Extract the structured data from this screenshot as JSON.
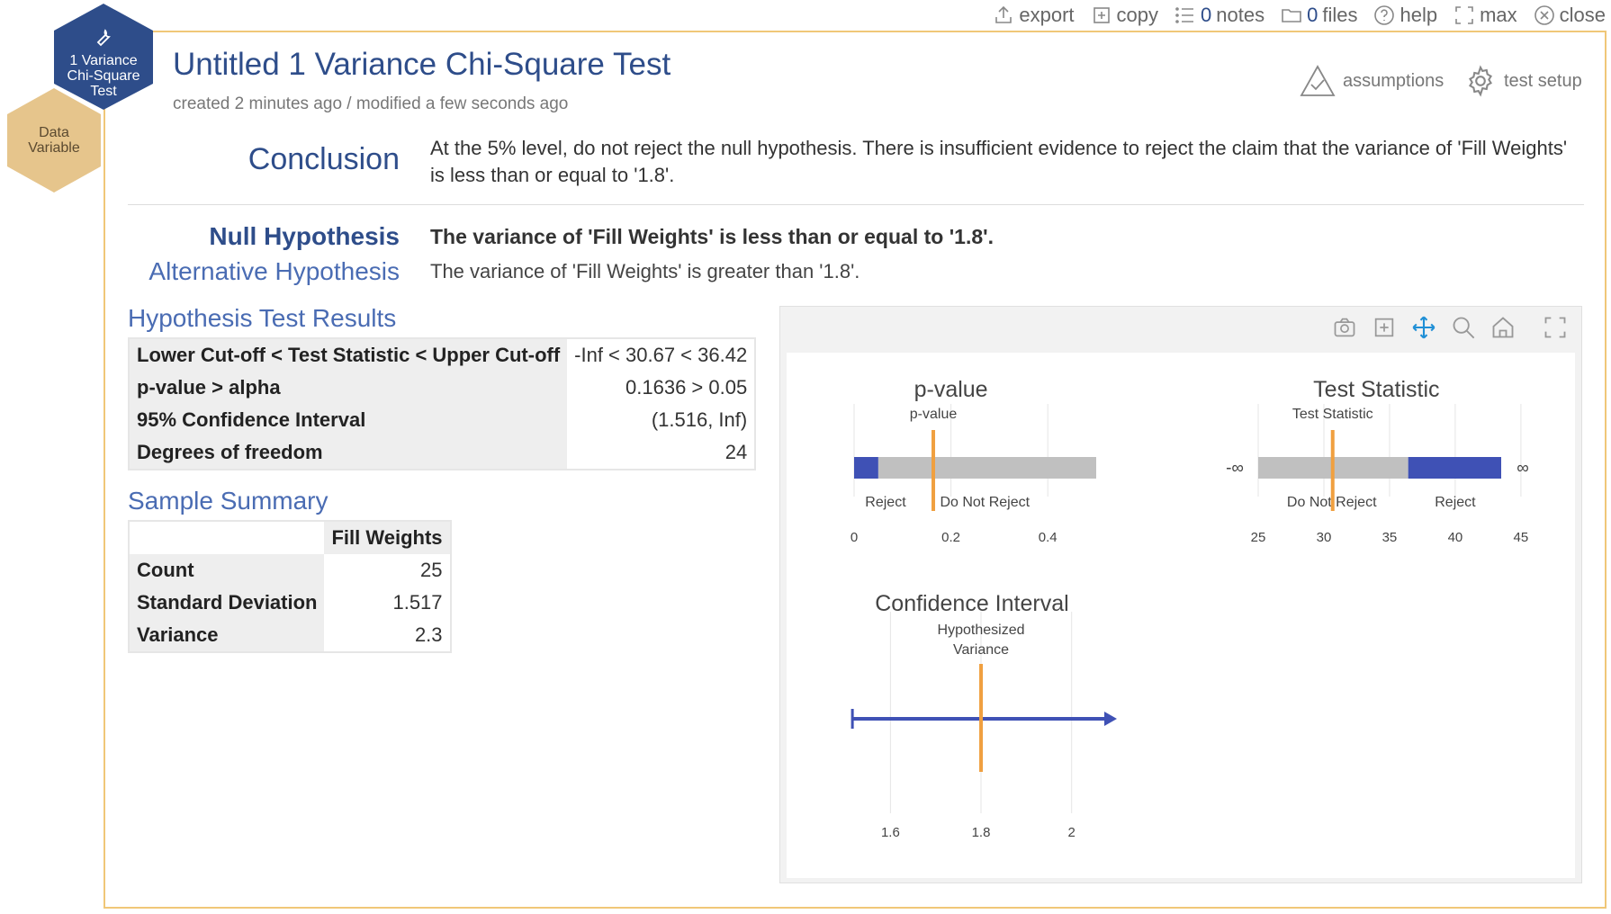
{
  "topbar": {
    "export": "export",
    "copy": "copy",
    "notes_count": "0",
    "notes": "notes",
    "files_count": "0",
    "files": "files",
    "help": "help",
    "max": "max",
    "close": "close"
  },
  "tool_badge": {
    "line1": "1 Variance",
    "line2": "Chi-Square",
    "line3": "Test",
    "color": "#2e4d8a",
    "icon": "wrench-icon"
  },
  "data_badge": {
    "line1": "Data",
    "line2": "Variable",
    "color": "#e6c58c"
  },
  "header": {
    "title": "Untitled 1 Variance Chi-Square Test",
    "subtitle": "created 2 minutes ago / modified a few seconds ago",
    "assumptions": "assumptions",
    "test_setup": "test setup"
  },
  "conclusion": {
    "label": "Conclusion",
    "text": "At the 5% level, do not reject the null hypothesis. There is insufficient evidence to reject the claim that the variance of 'Fill Weights' is less than or equal to '1.8'."
  },
  "hypotheses": {
    "null_label": "Null Hypothesis",
    "null_text": "The variance of 'Fill Weights' is less than or equal to '1.8'.",
    "alt_label": "Alternative Hypothesis",
    "alt_text": "The variance of 'Fill Weights' is greater than '1.8'."
  },
  "results": {
    "title": "Hypothesis Test Results",
    "rows": [
      {
        "label": "Lower Cut-off < Test Statistic < Upper Cut-off",
        "value": "-Inf < 30.67 < 36.42"
      },
      {
        "label": "p-value > alpha",
        "value": "0.1636 > 0.05"
      },
      {
        "label": "95% Confidence Interval",
        "value": "(1.516, Inf)"
      },
      {
        "label": "Degrees of freedom",
        "value": "24"
      }
    ]
  },
  "summary": {
    "title": "Sample Summary",
    "column": "Fill Weights",
    "rows": [
      {
        "label": "Count",
        "value": "25"
      },
      {
        "label": "Standard Deviation",
        "value": "1.517"
      },
      {
        "label": "Variance",
        "value": "2.3"
      }
    ]
  },
  "colors": {
    "accent": "#2e4d8a",
    "bar_reject": "#3f51b5",
    "bar_fail": "#c0c0c0",
    "marker": "#f0a040",
    "frame": "#f0c778"
  },
  "chart_data": [
    {
      "type": "bar",
      "title": "p-value",
      "xlim": [
        0,
        0.5
      ],
      "ticks": [
        "0",
        "0.2",
        "0.4"
      ],
      "tick_values": [
        0,
        0.2,
        0.4
      ],
      "regions": [
        {
          "label": "Reject",
          "from": 0,
          "to": 0.05
        },
        {
          "label": "Do Not Reject",
          "from": 0.05,
          "to": 0.5
        }
      ],
      "marker": {
        "label": "p-value",
        "value": 0.1636
      }
    },
    {
      "type": "bar",
      "title": "Test Statistic",
      "xlim": [
        25,
        43.5
      ],
      "ticks": [
        "25",
        "30",
        "35",
        "40",
        "45"
      ],
      "tick_values": [
        25,
        30,
        35,
        40,
        45
      ],
      "left_label": "-∞",
      "right_label": "∞",
      "regions": [
        {
          "label": "Do Not Reject",
          "from": 25,
          "to": 36.42
        },
        {
          "label": "Reject",
          "from": 36.42,
          "to": 43.5
        }
      ],
      "marker": {
        "label": "Test Statistic",
        "value": 30.67
      }
    },
    {
      "type": "line",
      "title": "Confidence Interval",
      "xlim": [
        1.48,
        2.1
      ],
      "ticks": [
        "1.6",
        "1.8",
        "2"
      ],
      "tick_values": [
        1.6,
        1.8,
        2.0
      ],
      "interval": {
        "lower": 1.516,
        "upper": "Inf"
      },
      "marker": {
        "label_line1": "Hypothesized",
        "label_line2": "Variance",
        "value": 1.8
      }
    }
  ]
}
